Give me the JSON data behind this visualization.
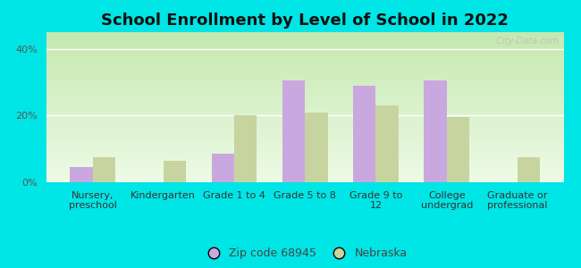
{
  "title": "School Enrollment by Level of School in 2022",
  "categories": [
    "Nursery,\npreschool",
    "Kindergarten",
    "Grade 1 to 4",
    "Grade 5 to 8",
    "Grade 9 to\n12",
    "College\nundergrad",
    "Graduate or\nprofessional"
  ],
  "zip_values": [
    4.5,
    0.0,
    8.5,
    30.5,
    29.0,
    30.5,
    0.0
  ],
  "nebraska_values": [
    7.5,
    6.5,
    20.0,
    21.0,
    23.0,
    19.5,
    7.5
  ],
  "zip_color": "#c9a8e0",
  "nebraska_color": "#c8d4a0",
  "background_color": "#00e5e5",
  "ylabel_ticks": [
    "0%",
    "20%",
    "40%"
  ],
  "yticks": [
    0,
    20,
    40
  ],
  "ylim": [
    0,
    45
  ],
  "zip_label": "Zip code 68945",
  "nebraska_label": "Nebraska",
  "watermark": "  City-Data.com",
  "title_fontsize": 13,
  "tick_fontsize": 8,
  "bar_width": 0.32
}
